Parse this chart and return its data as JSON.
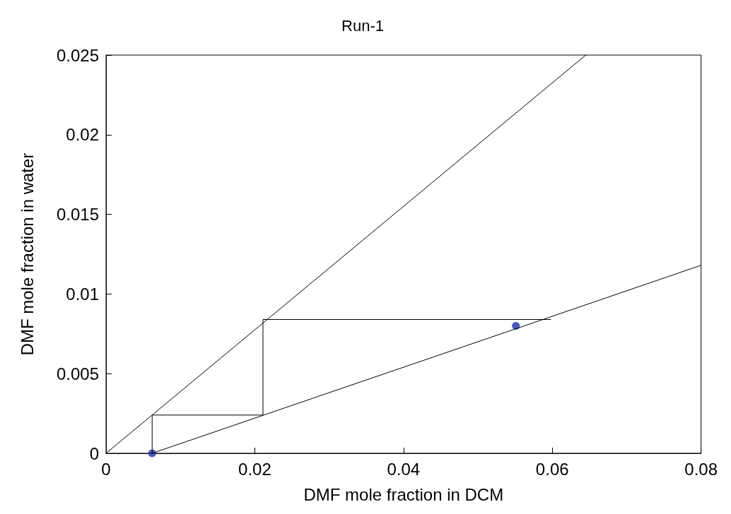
{
  "chart_data": {
    "type": "line",
    "title": "Run-1",
    "xlabel": "DMF mole fraction in DCM",
    "ylabel": "DMF mole fraction in water",
    "xlim": [
      0,
      0.08
    ],
    "xticks": [
      0,
      0.02,
      0.04,
      0.06,
      0.08
    ],
    "ylim": [
      0,
      0.025
    ],
    "yticks": [
      0,
      0.005,
      0.01,
      0.015,
      0.02,
      0.025
    ],
    "grid": false,
    "marker": "none",
    "line_style": "solid",
    "series": [
      {
        "color": "#000000",
        "x": [
          0,
          0.0645
        ],
        "values": [
          0,
          0.025
        ]
      },
      {
        "color": "#000000",
        "x": [
          0.0062,
          0.08
        ],
        "values": [
          0,
          0.0118
        ]
      },
      {
        "color": "#000000",
        "x": [
          0.0062,
          0.0062,
          0.0211,
          0.0211,
          0.0598
        ],
        "values": [
          0,
          0.0024,
          0.0024,
          0.0084,
          0.0084
        ]
      },
      {
        "type": "scatter",
        "marker": "circle",
        "color": "#1c2fa8",
        "x": [
          0.0062,
          0.0551
        ],
        "values": [
          0,
          0.008
        ]
      }
    ]
  }
}
